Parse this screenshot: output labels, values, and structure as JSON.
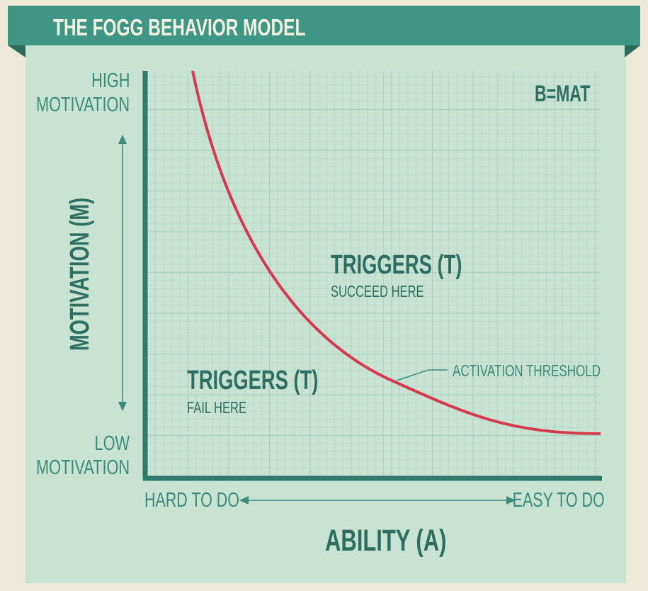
{
  "header": {
    "title": "THE FOGG BEHAVIOR MODEL"
  },
  "y_axis": {
    "top_label_line1": "HIGH",
    "top_label_line2": "MOTIVATION",
    "bottom_label_line1": "LOW",
    "bottom_label_line2": "MOTIVATION",
    "title": "MOTIVATION (M)"
  },
  "x_axis": {
    "left_label": "HARD TO DO",
    "right_label": "EASY TO DO",
    "title": "ABILITY (A)"
  },
  "formula": "B=MAT",
  "regions": {
    "above": {
      "title": "TRIGGERS (T)",
      "subtitle": "SUCCEED HERE"
    },
    "below": {
      "title": "TRIGGERS (T)",
      "subtitle": "FAIL HERE"
    }
  },
  "curve": {
    "label": "ACTIVATION THRESHOLD",
    "color": "#d6384e"
  },
  "colors": {
    "background": "#ece9d6",
    "panel": "#c9e3d3",
    "banner": "#3f9684",
    "text": "#3b8a7b",
    "grid": "#a9d0c2"
  }
}
